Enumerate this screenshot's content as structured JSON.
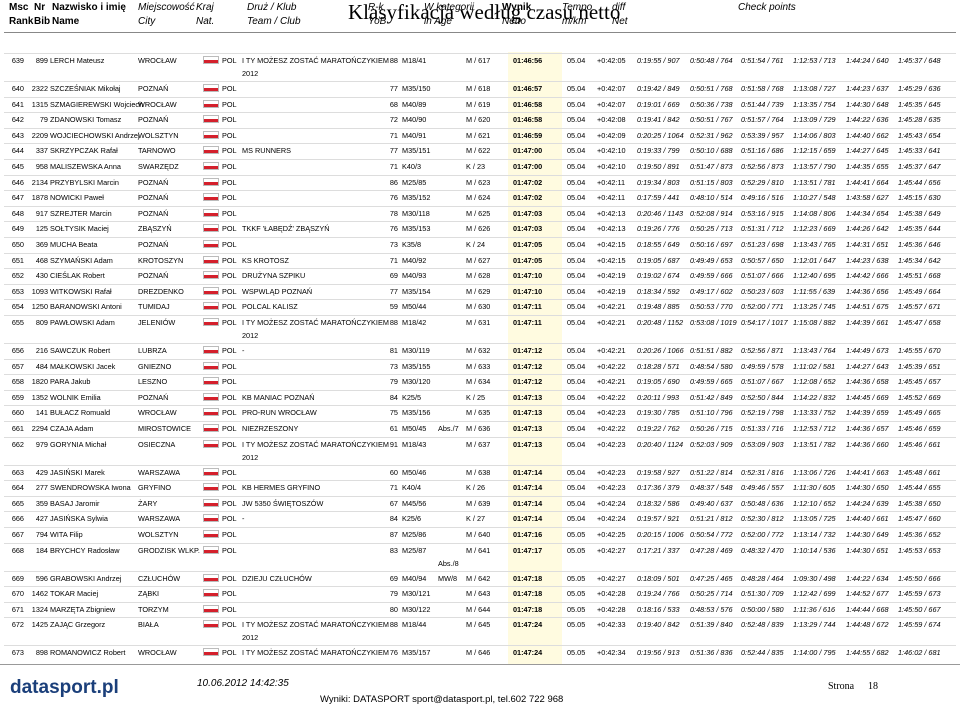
{
  "title": "Klasyfikacja według czasu netto",
  "header": {
    "rank_pl": "Msc",
    "rank_en": "Rank",
    "bib_pl": "Nr",
    "bib_en": "Bib",
    "name_pl": "Nazwisko i imię",
    "name_en": "Name",
    "city_pl": "Miejscowość",
    "city_en": "City",
    "nat_pl": "Kraj",
    "nat_en": "Nat.",
    "team_pl": "Druż / Klub",
    "team_en": "Team / Club",
    "yob_pl": "R-k",
    "yob_en": "YoB",
    "cat_pl": "W kategorii",
    "cat_en": "in Age",
    "netto_pl": "Wynik",
    "netto_en": "Netto",
    "tempo_pl": "Tempo",
    "tempo_en": "m/km",
    "diff_pl": "diff",
    "diff_en": "Net",
    "checkpoints": "Check points"
  },
  "rows": [
    {
      "rank": 639,
      "bib": 899,
      "name": "LERCH Mateusz",
      "city": "WROCŁAW",
      "nat": "POL",
      "team": "I TY MOŻESZ ZOSTAĆ MARATOŃCZYKIEM",
      "team2": "2012",
      "yob": 88,
      "cat": "M18/41",
      "age": "M / 617",
      "netto": "01:46:56",
      "tempo": "05.04",
      "diff": "+0:42:05",
      "cp": [
        "0:19:55 / 907",
        "0:50:48 / 764",
        "0:51:54 / 761",
        "1:12:53 / 713",
        "1:44:24 / 640",
        "1:45:37 / 648"
      ]
    },
    {
      "rank": 640,
      "bib": 2322,
      "name": "SZCZEŚNIAK Mikołaj",
      "city": "POZNAŃ",
      "nat": "POL",
      "yob": 77,
      "cat": "M35/150",
      "age": "M / 618",
      "netto": "01:46:57",
      "tempo": "05.04",
      "diff": "+0:42:07",
      "cp": [
        "0:19:42 / 849",
        "0:50:51 / 768",
        "0:51:58 / 768",
        "1:13:08 / 727",
        "1:44:23 / 637",
        "1:45:29 / 636"
      ]
    },
    {
      "rank": 641,
      "bib": 1315,
      "name": "SZMAGIEREWSKI Wojciech",
      "city": "WROCŁAW",
      "nat": "POL",
      "yob": 68,
      "cat": "M40/89",
      "age": "M / 619",
      "netto": "01:46:58",
      "tempo": "05.04",
      "diff": "+0:42:07",
      "cp": [
        "0:19:01 / 669",
        "0:50:36 / 738",
        "0:51:44 / 739",
        "1:13:35 / 754",
        "1:44:30 / 648",
        "1:45:35 / 645"
      ]
    },
    {
      "rank": 642,
      "bib": 79,
      "name": "ZDANOWSKI Tomasz",
      "city": "POZNAŃ",
      "nat": "POL",
      "yob": 72,
      "cat": "M40/90",
      "age": "M / 620",
      "netto": "01:46:58",
      "tempo": "05.04",
      "diff": "+0:42:08",
      "cp": [
        "0:19:41 / 842",
        "0:50:51 / 767",
        "0:51:57 / 764",
        "1:13:09 / 729",
        "1:44:22 / 636",
        "1:45:28 / 635"
      ]
    },
    {
      "rank": 643,
      "bib": 2209,
      "name": "WOJCIECHOWSKI Andrzej",
      "city": "WOLSZTYN",
      "nat": "POL",
      "yob": 71,
      "cat": "M40/91",
      "age": "M / 621",
      "netto": "01:46:59",
      "tempo": "05.04",
      "diff": "+0:42:09",
      "cp": [
        "0:20:25 / 1064",
        "0:52:31 / 962",
        "0:53:39 / 957",
        "1:14:06 / 803",
        "1:44:40 / 662",
        "1:45:43 / 654"
      ]
    },
    {
      "rank": 644,
      "bib": 337,
      "name": "SKRZYPCZAK Rafał",
      "city": "TARNOWO",
      "nat": "POL",
      "team": "MS RUNNERS",
      "yob": 77,
      "cat": "M35/151",
      "age": "M / 622",
      "netto": "01:47:00",
      "tempo": "05.04",
      "diff": "+0:42:10",
      "cp": [
        "0:19:33 / 799",
        "0:50:10 / 688",
        "0:51:16 / 686",
        "1:12:15 / 659",
        "1:44:27 / 645",
        "1:45:33 / 641"
      ]
    },
    {
      "rank": 645,
      "bib": 958,
      "name": "MALISZEWSKA Anna",
      "city": "SWARZĘDZ",
      "nat": "POL",
      "yob": 71,
      "cat": "K40/3",
      "age": "K / 23",
      "netto": "01:47:00",
      "tempo": "05.04",
      "diff": "+0:42:10",
      "cp": [
        "0:19:50 / 891",
        "0:51:47 / 873",
        "0:52:56 / 873",
        "1:13:57 / 790",
        "1:44:35 / 655",
        "1:45:37 / 647"
      ]
    },
    {
      "rank": 646,
      "bib": 2134,
      "name": "PRZYBYLSKI Marcin",
      "city": "POZNAŃ",
      "nat": "POL",
      "yob": 86,
      "cat": "M25/85",
      "age": "M / 623",
      "netto": "01:47:02",
      "tempo": "05.04",
      "diff": "+0:42:11",
      "cp": [
        "0:19:34 / 803",
        "0:51:15 / 803",
        "0:52:29 / 810",
        "1:13:51 / 781",
        "1:44:41 / 664",
        "1:45:44 / 656"
      ]
    },
    {
      "rank": 647,
      "bib": 1878,
      "name": "NOWICKI Paweł",
      "city": "POZNAŃ",
      "nat": "POL",
      "yob": 76,
      "cat": "M35/152",
      "age": "M / 624",
      "netto": "01:47:02",
      "tempo": "05.04",
      "diff": "+0:42:11",
      "cp": [
        "0:17:59 / 441",
        "0:48:10 / 514",
        "0:49:16 / 516",
        "1:10:27 / 548",
        "1:43:58 / 627",
        "1:45:15 / 630"
      ]
    },
    {
      "rank": 648,
      "bib": 917,
      "name": "SZREJTER Marcin",
      "city": "POZNAŃ",
      "nat": "POL",
      "yob": 78,
      "cat": "M30/118",
      "age": "M / 625",
      "netto": "01:47:03",
      "tempo": "05.04",
      "diff": "+0:42:13",
      "cp": [
        "0:20:46 / 1143",
        "0:52:08 / 914",
        "0:53:16 / 915",
        "1:14:08 / 806",
        "1:44:34 / 654",
        "1:45:38 / 649"
      ]
    },
    {
      "rank": 649,
      "bib": 125,
      "name": "SOŁTYSIK Maciej",
      "city": "ZBĄSZYŃ",
      "nat": "POL",
      "team": "TKKF 'ŁABĘDŹ' ZBĄSZYŃ",
      "yob": 76,
      "cat": "M35/153",
      "age": "M / 626",
      "netto": "01:47:03",
      "tempo": "05.04",
      "diff": "+0:42:13",
      "cp": [
        "0:19:26 / 776",
        "0:50:25 / 713",
        "0:51:31 / 712",
        "1:12:23 / 669",
        "1:44:26 / 642",
        "1:45:35 / 644"
      ]
    },
    {
      "rank": 650,
      "bib": 369,
      "name": "MUCHA Beata",
      "city": "POZNAŃ",
      "nat": "POL",
      "yob": 73,
      "cat": "K35/8",
      "age": "K / 24",
      "netto": "01:47:05",
      "tempo": "05.04",
      "diff": "+0:42:15",
      "cp": [
        "0:18:55 / 649",
        "0:50:16 / 697",
        "0:51:23 / 698",
        "1:13:43 / 765",
        "1:44:31 / 651",
        "1:45:36 / 646"
      ]
    },
    {
      "rank": 651,
      "bib": 468,
      "name": "SZYMAŃSKI Adam",
      "city": "KROTOSZYN",
      "nat": "POL",
      "team": "KS KROTOSZ",
      "yob": 71,
      "cat": "M40/92",
      "age": "M / 627",
      "netto": "01:47:05",
      "tempo": "05.04",
      "diff": "+0:42:15",
      "cp": [
        "0:19:05 / 687",
        "0:49:49 / 653",
        "0:50:57 / 650",
        "1:12:01 / 647",
        "1:44:23 / 638",
        "1:45:34 / 642"
      ]
    },
    {
      "rank": 652,
      "bib": 430,
      "name": "CIEŚLAK Robert",
      "city": "POZNAŃ",
      "nat": "POL",
      "team": "DRUŻYNA SZPIKU",
      "yob": 69,
      "cat": "M40/93",
      "age": "M / 628",
      "netto": "01:47:10",
      "tempo": "05.04",
      "diff": "+0:42:19",
      "cp": [
        "0:19:02 / 674",
        "0:49:59 / 666",
        "0:51:07 / 666",
        "1:12:40 / 695",
        "1:44:42 / 666",
        "1:45:51 / 668"
      ]
    },
    {
      "rank": 653,
      "bib": 1093,
      "name": "WITKOWSKI Rafał",
      "city": "DREZDENKO",
      "nat": "POL",
      "team": "WSPWLĄD POZNAŃ",
      "yob": 77,
      "cat": "M35/154",
      "age": "M / 629",
      "netto": "01:47:10",
      "tempo": "05.04",
      "diff": "+0:42:19",
      "cp": [
        "0:18:34 / 592",
        "0:49:17 / 602",
        "0:50:23 / 603",
        "1:11:55 / 639",
        "1:44:36 / 656",
        "1:45:49 / 664"
      ]
    },
    {
      "rank": 654,
      "bib": 1250,
      "name": "BARANOWSKI Antoni",
      "city": "TUMIDAJ",
      "nat": "POL",
      "team": "POLCAL KALISZ",
      "yob": 59,
      "cat": "M50/44",
      "age": "M / 630",
      "netto": "01:47:11",
      "tempo": "05.04",
      "diff": "+0:42:21",
      "cp": [
        "0:19:48 / 885",
        "0:50:53 / 770",
        "0:52:00 / 771",
        "1:13:25 / 745",
        "1:44:51 / 675",
        "1:45:57 / 671"
      ]
    },
    {
      "rank": 655,
      "bib": 809,
      "name": "PAWŁOWSKI Adam",
      "city": "JELENIÓW",
      "nat": "POL",
      "team": "I TY MOŻESZ ZOSTAĆ MARATOŃCZYKIEM",
      "team2": "2012",
      "yob": 88,
      "cat": "M18/42",
      "age": "M / 631",
      "netto": "01:47:11",
      "tempo": "05.04",
      "diff": "+0:42:21",
      "cp": [
        "0:20:48 / 1152",
        "0:53:08 / 1019",
        "0:54:17 / 1017",
        "1:15:08 / 882",
        "1:44:39 / 661",
        "1:45:47 / 658"
      ]
    },
    {
      "rank": 656,
      "bib": 216,
      "name": "SAWCZUK Robert",
      "city": "LUBRZA",
      "nat": "POL",
      "team": "-",
      "yob": 81,
      "cat": "M30/119",
      "age": "M / 632",
      "netto": "01:47:12",
      "tempo": "05.04",
      "diff": "+0:42:21",
      "cp": [
        "0:20:26 / 1066",
        "0:51:51 / 882",
        "0:52:56 / 871",
        "1:13:43 / 764",
        "1:44:49 / 673",
        "1:45:55 / 670"
      ]
    },
    {
      "rank": 657,
      "bib": 484,
      "name": "MAŁKOWSKI Jacek",
      "city": "GNIEZNO",
      "nat": "POL",
      "yob": 73,
      "cat": "M35/155",
      "age": "M / 633",
      "netto": "01:47:12",
      "tempo": "05.04",
      "diff": "+0:42:22",
      "cp": [
        "0:18:28 / 571",
        "0:48:54 / 580",
        "0:49:59 / 578",
        "1:11:02 / 581",
        "1:44:27 / 643",
        "1:45:39 / 651"
      ]
    },
    {
      "rank": 658,
      "bib": 1820,
      "name": "PARA Jakub",
      "city": "LESZNO",
      "nat": "POL",
      "yob": 79,
      "cat": "M30/120",
      "age": "M / 634",
      "netto": "01:47:12",
      "tempo": "05.04",
      "diff": "+0:42:21",
      "cp": [
        "0:19:05 / 690",
        "0:49:59 / 665",
        "0:51:07 / 667",
        "1:12:08 / 652",
        "1:44:36 / 658",
        "1:45:45 / 657"
      ]
    },
    {
      "rank": 659,
      "bib": 1352,
      "name": "WOLNIK Emilia",
      "city": "POZNAŃ",
      "nat": "POL",
      "team": "KB MANIAC POZNAŃ",
      "yob": 84,
      "cat": "K25/5",
      "age": "K / 25",
      "netto": "01:47:13",
      "tempo": "05.04",
      "diff": "+0:42:22",
      "cp": [
        "0:20:11 / 993",
        "0:51:42 / 849",
        "0:52:50 / 844",
        "1:14:22 / 832",
        "1:44:45 / 669",
        "1:45:52 / 669"
      ]
    },
    {
      "rank": 660,
      "bib": 141,
      "name": "BUŁACZ Romuald",
      "city": "WROCŁAW",
      "nat": "POL",
      "team": "PRO-RUN WROCŁAW",
      "yob": 75,
      "cat": "M35/156",
      "age": "M / 635",
      "netto": "01:47:13",
      "tempo": "05.04",
      "diff": "+0:42:23",
      "cp": [
        "0:19:30 / 785",
        "0:51:10 / 796",
        "0:52:19 / 798",
        "1:13:33 / 752",
        "1:44:39 / 659",
        "1:45:49 / 665"
      ]
    },
    {
      "rank": 661,
      "bib": 2294,
      "name": "CZAJA Adam",
      "city": "MIROSTOWICE",
      "nat": "POL",
      "team": "NIEZRZESZONY",
      "yob": 61,
      "cat": "M50/45",
      "abs": "Abs./7",
      "age": "M / 636",
      "netto": "01:47:13",
      "tempo": "05.04",
      "diff": "+0:42:22",
      "cp": [
        "0:19:22 / 762",
        "0:50:26 / 715",
        "0:51:33 / 716",
        "1:12:53 / 712",
        "1:44:36 / 657",
        "1:45:46 / 659"
      ]
    },
    {
      "rank": 662,
      "bib": 979,
      "name": "GORYNIA Michał",
      "city": "OSIECZNA",
      "nat": "POL",
      "team": "I TY MOŻESZ ZOSTAĆ MARATOŃCZYKIEM",
      "team2": "2012",
      "yob": 91,
      "cat": "M18/43",
      "age": "M / 637",
      "netto": "01:47:13",
      "tempo": "05.04",
      "diff": "+0:42:23",
      "cp": [
        "0:20:40 / 1124",
        "0:52:03 / 909",
        "0:53:09 / 903",
        "1:13:51 / 782",
        "1:44:36 / 660",
        "1:45:46 / 661"
      ]
    },
    {
      "rank": 663,
      "bib": 429,
      "name": "JASIŃSKI Marek",
      "city": "WARSZAWA",
      "nat": "POL",
      "yob": 60,
      "cat": "M50/46",
      "age": "M / 638",
      "netto": "01:47:14",
      "tempo": "05.04",
      "diff": "+0:42:23",
      "cp": [
        "0:19:58 / 927",
        "0:51:22 / 814",
        "0:52:31 / 816",
        "1:13:06 / 726",
        "1:44:41 / 663",
        "1:45:48 / 661"
      ]
    },
    {
      "rank": 664,
      "bib": 277,
      "name": "SWENDROWSKA Iwona",
      "city": "GRYFINO",
      "nat": "POL",
      "team": "KB HERMES GRYFINO",
      "yob": 71,
      "cat": "K40/4",
      "age": "K / 26",
      "netto": "01:47:14",
      "tempo": "05.04",
      "diff": "+0:42:23",
      "cp": [
        "0:17:36 / 379",
        "0:48:37 / 548",
        "0:49:46 / 557",
        "1:11:30 / 605",
        "1:44:30 / 650",
        "1:45:44 / 655"
      ]
    },
    {
      "rank": 665,
      "bib": 359,
      "name": "BASAJ Jaromir",
      "city": "ŻARY",
      "nat": "POL",
      "team": "JW 5350 ŚWIĘTOSZÓW",
      "yob": 67,
      "cat": "M45/56",
      "age": "M / 639",
      "netto": "01:47:14",
      "tempo": "05.04",
      "diff": "+0:42:24",
      "cp": [
        "0:18:32 / 586",
        "0:49:40 / 637",
        "0:50:48 / 636",
        "1:12:10 / 652",
        "1:44:24 / 639",
        "1:45:38 / 650"
      ]
    },
    {
      "rank": 666,
      "bib": 427,
      "name": "JASIŃSKA Sylwia",
      "city": "WARSZAWA",
      "nat": "POL",
      "team": "-",
      "yob": 84,
      "cat": "K25/6",
      "age": "K / 27",
      "netto": "01:47:14",
      "tempo": "05.04",
      "diff": "+0:42:24",
      "cp": [
        "0:19:57 / 921",
        "0:51:21 / 812",
        "0:52:30 / 812",
        "1:13:05 / 725",
        "1:44:40 / 661",
        "1:45:47 / 660"
      ]
    },
    {
      "rank": 667,
      "bib": 794,
      "name": "WITA Filip",
      "city": "WOLSZTYN",
      "nat": "POL",
      "yob": 87,
      "cat": "M25/86",
      "age": "M / 640",
      "netto": "01:47:16",
      "tempo": "05.05",
      "diff": "+0:42:25",
      "cp": [
        "0:20:15 / 1006",
        "0:50:54 / 772",
        "0:52:00 / 772",
        "1:13:14 / 732",
        "1:44:30 / 649",
        "1:45:36 / 652"
      ]
    },
    {
      "rank": 668,
      "bib": 184,
      "name": "BRYCHCY Radosław",
      "city": "GRODZISK WLKP.",
      "nat": "POL",
      "yob": 83,
      "cat": "M25/87",
      "abs2": "Abs./8",
      "age": "M / 641",
      "netto": "01:47:17",
      "tempo": "05.05",
      "diff": "+0:42:27",
      "cp": [
        "0:17:21 / 337",
        "0:47:28 / 469",
        "0:48:32 / 470",
        "1:10:14 / 536",
        "1:44:30 / 651",
        "1:45:53 / 653"
      ]
    },
    {
      "rank": 669,
      "bib": 596,
      "name": "GRABOWSKI Andrzej",
      "city": "CZŁUCHÓW",
      "nat": "POL",
      "team": "DZIEJU CZŁUCHÓW",
      "yob": 69,
      "cat": "M40/94",
      "abs": "MW/8",
      "age": "M / 642",
      "netto": "01:47:18",
      "tempo": "05.05",
      "diff": "+0:42:27",
      "cp": [
        "0:18:09 / 501",
        "0:47:25 / 465",
        "0:48:28 / 464",
        "1:09:30 / 498",
        "1:44:22 / 634",
        "1:45:50 / 666"
      ]
    },
    {
      "rank": 670,
      "bib": 1462,
      "name": "TOKAR Maciej",
      "city": "ZĄBKI",
      "nat": "POL",
      "yob": 79,
      "cat": "M30/121",
      "age": "M / 643",
      "netto": "01:47:18",
      "tempo": "05.05",
      "diff": "+0:42:28",
      "cp": [
        "0:19:24 / 766",
        "0:50:25 / 714",
        "0:51:30 / 709",
        "1:12:42 / 699",
        "1:44:52 / 677",
        "1:45:59 / 673"
      ]
    },
    {
      "rank": 671,
      "bib": 1324,
      "name": "MARZĘTA Zbigniew",
      "city": "TORZYM",
      "nat": "POL",
      "yob": 80,
      "cat": "M30/122",
      "age": "M / 644",
      "netto": "01:47:18",
      "tempo": "05.05",
      "diff": "+0:42:28",
      "cp": [
        "0:18:16 / 533",
        "0:48:53 / 576",
        "0:50:00 / 580",
        "1:11:36 / 616",
        "1:44:44 / 668",
        "1:45:50 / 667"
      ]
    },
    {
      "rank": 672,
      "bib": 1425,
      "name": "ZAJĄC Grzegorz",
      "city": "BIAŁA",
      "nat": "POL",
      "team": "I TY MOŻESZ ZOSTAĆ MARATOŃCZYKIEM",
      "team2": "2012",
      "yob": 88,
      "cat": "M18/44",
      "age": "M / 645",
      "netto": "01:47:24",
      "tempo": "05.05",
      "diff": "+0:42:33",
      "cp": [
        "0:19:40 / 842",
        "0:51:39 / 840",
        "0:52:48 / 839",
        "1:13:29 / 744",
        "1:44:48 / 672",
        "1:45:59 / 674"
      ]
    },
    {
      "rank": 673,
      "bib": 898,
      "name": "ROMANOWICZ Robert",
      "city": "WROCŁAW",
      "nat": "POL",
      "team": "I TY MOŻESZ ZOSTAĆ MARATOŃCZYKIEM",
      "yob": 76,
      "cat": "M35/157",
      "age": "M / 646",
      "netto": "01:47:24",
      "tempo": "05.05",
      "diff": "+0:42:34",
      "cp": [
        "0:19:56 / 913",
        "0:51:36 / 836",
        "0:52:44 / 835",
        "1:14:00 / 795",
        "1:44:55 / 682",
        "1:46:02 / 681"
      ]
    }
  ],
  "footer": {
    "logo": "datasport.pl",
    "date": "10.06.2012 14:42:35",
    "contact": "Wyniki: DATASPORT sport@datasport.pl, tel.602 722 968",
    "page_label": "Strona",
    "page": "18"
  }
}
